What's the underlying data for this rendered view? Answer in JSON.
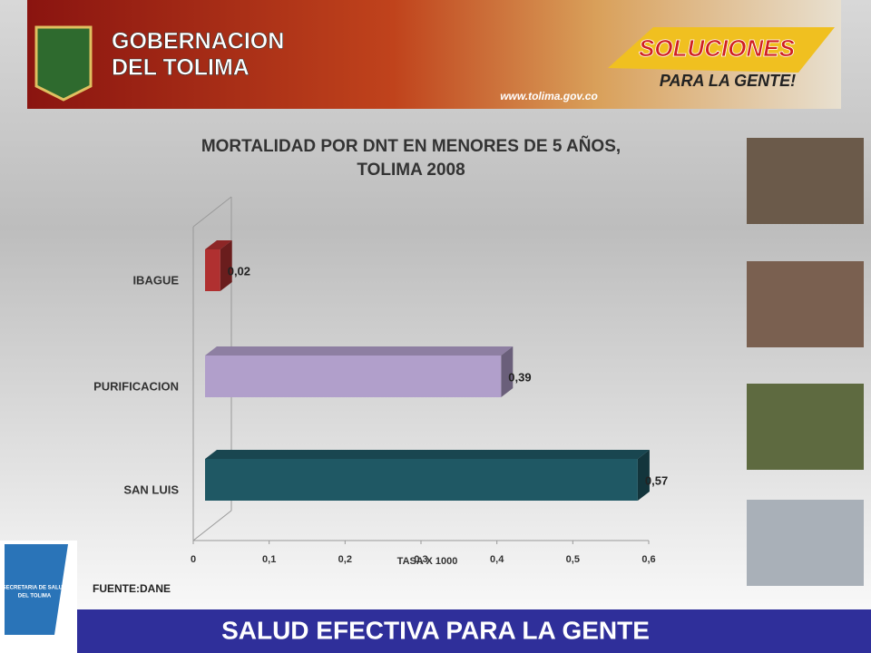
{
  "header": {
    "line1": "GOBERNACION",
    "line2": "DEL TOLIMA",
    "slogan1": "SOLUCIONES",
    "slogan2": "PARA LA GENTE!",
    "url": "www.tolima.gov.co"
  },
  "chart_data": {
    "type": "bar",
    "orientation": "horizontal",
    "title": "MORTALIDAD POR DNT EN MENORES DE 5 AÑOS,",
    "subtitle": "TOLIMA 2008",
    "categories": [
      "IBAGUE",
      "PURIFICACION",
      "SAN LUIS"
    ],
    "values": [
      0.02,
      0.39,
      0.57
    ],
    "value_labels": [
      "0,02",
      "0,39",
      "0,57"
    ],
    "colors": [
      "#b03030",
      "#b19fcb",
      "#1f5864"
    ],
    "xlim": [
      0,
      0.6
    ],
    "xticks": [
      0,
      {
        "value": 0.1,
        "label": "0,1"
      },
      {
        "value": 0.2,
        "label": "0,2"
      },
      {
        "value": 0.3,
        "label": "0,3"
      },
      {
        "value": 0.4,
        "label": "0,4"
      },
      {
        "value": 0.5,
        "label": "0,5"
      },
      {
        "value": 0.6,
        "label": "0,6"
      }
    ],
    "x_label": "TASA X 1000"
  },
  "source": "FUENTE:DANE",
  "logo": {
    "line1": "SECRETARIA DE SALUD",
    "line2": "DEL TOLIMA"
  },
  "footer": "SALUD EFECTIVA PARA LA GENTE"
}
